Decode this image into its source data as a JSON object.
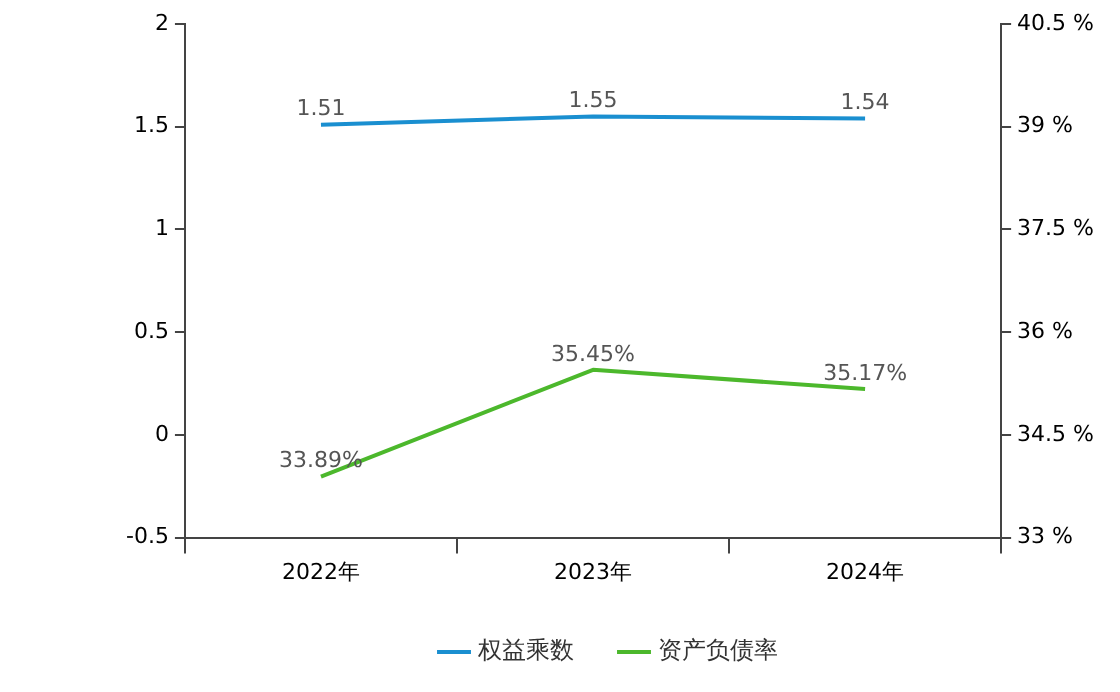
{
  "chart_data": {
    "type": "line",
    "categories": [
      "2022年",
      "2023年",
      "2024年"
    ],
    "series": [
      {
        "name": "权益乘数",
        "color": "#1a8fd0",
        "values": [
          1.51,
          1.55,
          1.54
        ],
        "value_labels": [
          "1.51",
          "1.55",
          "1.54"
        ]
      },
      {
        "name": "资产负债率",
        "color": "#4cb82c",
        "axis": "y2",
        "values": [
          33.89,
          35.45,
          35.17
        ],
        "value_labels": [
          "33.89%",
          "35.45%",
          "35.17%"
        ]
      }
    ],
    "ylim": [
      -0.5,
      2
    ],
    "yticks": [
      -0.5,
      0,
      0.5,
      1,
      1.5,
      2
    ],
    "y2lim": [
      33,
      40.5
    ],
    "y2ticks": [
      {
        "value": 33,
        "label": "33 %"
      },
      {
        "value": 34.5,
        "label": "34.5 %"
      },
      {
        "value": 36,
        "label": "36 %"
      },
      {
        "value": 37.5,
        "label": "37.5 %"
      },
      {
        "value": 39,
        "label": "39 %"
      },
      {
        "value": 40.5,
        "label": "40.5 %"
      }
    ],
    "grid": false,
    "legend": "bottom",
    "marker": "none",
    "line_style": "solid"
  }
}
